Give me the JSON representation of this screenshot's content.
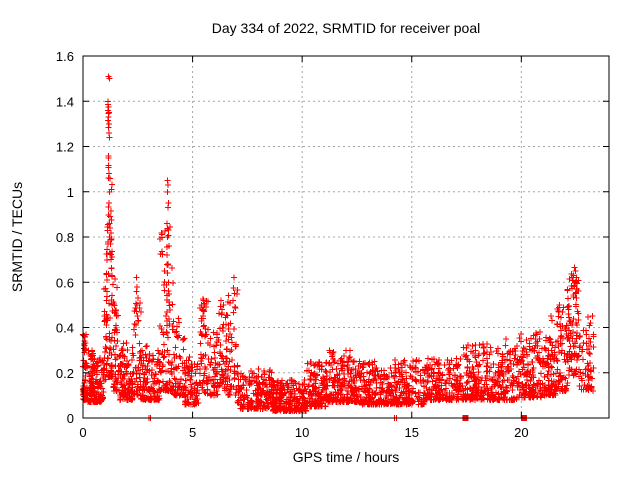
{
  "title": "Day 334 of 2022, SRMTID for receiver poal",
  "colors": {
    "marker": "#ff0000",
    "grid": "#a6a6a6",
    "axis": "#000000",
    "background": "#ffffff",
    "text": "#000000"
  },
  "chart_data": {
    "type": "scatter",
    "title": "Day 334 of 2022, SRMTID for receiver poal",
    "xlabel": "GPS time / hours",
    "ylabel": "SRMTID / TECUs",
    "xlim": [
      0,
      24
    ],
    "ylim": [
      0,
      1.6
    ],
    "xticks": [
      0,
      5,
      10,
      15,
      20
    ],
    "xtick_labels": [
      "0",
      "5",
      "10",
      "15",
      "20"
    ],
    "yticks": [
      0,
      0.2,
      0.4,
      0.6,
      0.8,
      1.0,
      1.2,
      1.4,
      1.6
    ],
    "ytick_labels": [
      "0",
      "0.2",
      "0.4",
      "0.6",
      "0.8",
      "1",
      "1.2",
      "1.4",
      "1.6"
    ],
    "grid": true,
    "legend": "none",
    "marker": "plus",
    "marker_color": "#ff0000",
    "seed": 334,
    "series_description": "Dense noisy SRMTID scatter over 24 h: background band 0.05-0.3 TECU with spikes near 1.2 h (to 1.51), 3.9 h (to 1.05), 2.45 h (0.62), 5.5/6.4/6.9 h (0.5-0.62) and end-of-day rise at 22.4 h (to 0.66); quietest 7-10 h (0.03-0.2).",
    "envelope_segments": [
      {
        "x0": 0.0,
        "x1": 0.15,
        "n": 55,
        "ymin": 0.08,
        "ymax": 0.37,
        "skew": 1.6
      },
      {
        "x0": 0.15,
        "x1": 0.55,
        "n": 90,
        "ymin": 0.07,
        "ymax": 0.3,
        "skew": 2.0
      },
      {
        "x0": 0.55,
        "x1": 0.95,
        "n": 70,
        "ymin": 0.07,
        "ymax": 0.28,
        "skew": 2.0
      },
      {
        "x0": 0.95,
        "x1": 1.1,
        "n": 22,
        "ymin": 0.15,
        "ymax": 0.66,
        "skew": 1.2
      },
      {
        "x0": 1.05,
        "x1": 1.35,
        "n": 80,
        "ymin": 0.18,
        "ymax": 1.2,
        "skew": 2.6
      },
      {
        "x0": 1.35,
        "x1": 1.6,
        "n": 45,
        "ymin": 0.12,
        "ymax": 0.62,
        "skew": 1.8
      },
      {
        "x0": 1.6,
        "x1": 2.3,
        "n": 120,
        "ymin": 0.08,
        "ymax": 0.34,
        "skew": 2.0
      },
      {
        "x0": 2.3,
        "x1": 2.65,
        "n": 45,
        "ymin": 0.1,
        "ymax": 0.55,
        "skew": 1.6
      },
      {
        "x0": 2.65,
        "x1": 3.5,
        "n": 120,
        "ymin": 0.08,
        "ymax": 0.32,
        "skew": 2.0
      },
      {
        "x0": 3.5,
        "x1": 4.1,
        "n": 100,
        "ymin": 0.12,
        "ymax": 0.85,
        "skew": 2.4
      },
      {
        "x0": 4.1,
        "x1": 4.65,
        "n": 65,
        "ymin": 0.1,
        "ymax": 0.44,
        "skew": 1.8
      },
      {
        "x0": 4.65,
        "x1": 5.3,
        "n": 85,
        "ymin": 0.06,
        "ymax": 0.28,
        "skew": 1.9
      },
      {
        "x0": 5.3,
        "x1": 5.75,
        "n": 55,
        "ymin": 0.1,
        "ymax": 0.53,
        "skew": 1.3
      },
      {
        "x0": 5.75,
        "x1": 6.15,
        "n": 45,
        "ymin": 0.1,
        "ymax": 0.38,
        "skew": 1.8
      },
      {
        "x0": 6.15,
        "x1": 6.6,
        "n": 55,
        "ymin": 0.12,
        "ymax": 0.52,
        "skew": 1.4
      },
      {
        "x0": 6.6,
        "x1": 7.05,
        "n": 50,
        "ymin": 0.1,
        "ymax": 0.58,
        "skew": 1.8
      },
      {
        "x0": 7.05,
        "x1": 8.6,
        "n": 200,
        "ymin": 0.04,
        "ymax": 0.22,
        "skew": 1.9
      },
      {
        "x0": 8.6,
        "x1": 10.2,
        "n": 230,
        "ymin": 0.03,
        "ymax": 0.17,
        "skew": 1.8
      },
      {
        "x0": 10.2,
        "x1": 11.1,
        "n": 140,
        "ymin": 0.05,
        "ymax": 0.25,
        "skew": 2.0
      },
      {
        "x0": 11.1,
        "x1": 12.6,
        "n": 210,
        "ymin": 0.07,
        "ymax": 0.3,
        "skew": 2.2
      },
      {
        "x0": 12.6,
        "x1": 14.1,
        "n": 190,
        "ymin": 0.06,
        "ymax": 0.25,
        "skew": 2.0
      },
      {
        "x0": 14.1,
        "x1": 15.6,
        "n": 180,
        "ymin": 0.06,
        "ymax": 0.26,
        "skew": 2.0
      },
      {
        "x0": 15.6,
        "x1": 17.3,
        "n": 200,
        "ymin": 0.08,
        "ymax": 0.27,
        "skew": 2.0
      },
      {
        "x0": 17.3,
        "x1": 18.7,
        "n": 180,
        "ymin": 0.08,
        "ymax": 0.33,
        "skew": 2.0
      },
      {
        "x0": 18.7,
        "x1": 19.8,
        "n": 130,
        "ymin": 0.08,
        "ymax": 0.31,
        "skew": 2.0
      },
      {
        "x0": 19.8,
        "x1": 20.9,
        "n": 150,
        "ymin": 0.09,
        "ymax": 0.38,
        "skew": 2.2
      },
      {
        "x0": 20.9,
        "x1": 21.6,
        "n": 90,
        "ymin": 0.1,
        "ymax": 0.4,
        "skew": 2.0
      },
      {
        "x0": 21.6,
        "x1": 22.1,
        "n": 70,
        "ymin": 0.12,
        "ymax": 0.5,
        "skew": 1.7
      },
      {
        "x0": 22.1,
        "x1": 22.65,
        "n": 90,
        "ymin": 0.18,
        "ymax": 0.64,
        "skew": 1.1
      },
      {
        "x0": 22.65,
        "x1": 23.3,
        "n": 60,
        "ymin": 0.12,
        "ymax": 0.46,
        "skew": 1.6
      }
    ],
    "explicit_points": [
      [
        1.17,
        1.51
      ],
      [
        1.2,
        1.5
      ],
      [
        1.13,
        1.4
      ],
      [
        1.15,
        1.385
      ],
      [
        1.16,
        1.375
      ],
      [
        1.14,
        1.36
      ],
      [
        1.18,
        1.35
      ],
      [
        1.16,
        1.345
      ],
      [
        1.17,
        1.33
      ],
      [
        1.15,
        1.315
      ],
      [
        1.19,
        1.3
      ],
      [
        1.16,
        1.285
      ],
      [
        1.18,
        1.26
      ],
      [
        1.2,
        1.24
      ],
      [
        1.17,
        1.15
      ],
      [
        1.19,
        1.08
      ],
      [
        1.16,
        1.06
      ],
      [
        1.21,
        1.0
      ],
      [
        1.18,
        0.95
      ],
      [
        1.23,
        0.89
      ],
      [
        1.21,
        0.86
      ],
      [
        1.24,
        0.84
      ],
      [
        1.22,
        0.8
      ],
      [
        1.25,
        0.77
      ],
      [
        1.23,
        0.73
      ],
      [
        1.27,
        0.7
      ],
      [
        1.3,
        0.66
      ],
      [
        1.33,
        0.63
      ],
      [
        3.85,
        1.05
      ],
      [
        3.88,
        1.03
      ],
      [
        3.86,
        1.0
      ],
      [
        3.9,
        0.95
      ],
      [
        3.87,
        0.93
      ],
      [
        3.84,
        0.86
      ],
      [
        3.89,
        0.83
      ],
      [
        3.86,
        0.8
      ],
      [
        3.92,
        0.76
      ],
      [
        3.83,
        0.72
      ],
      [
        3.88,
        0.68
      ],
      [
        3.85,
        0.64
      ],
      [
        3.91,
        0.6
      ],
      [
        2.45,
        0.62
      ],
      [
        2.47,
        0.58
      ],
      [
        2.43,
        0.56
      ],
      [
        2.5,
        0.53
      ],
      [
        2.46,
        0.5
      ],
      [
        2.44,
        0.47
      ],
      [
        2.49,
        0.45
      ],
      [
        6.9,
        0.62
      ],
      [
        6.87,
        0.575
      ],
      [
        6.92,
        0.55
      ],
      [
        6.85,
        0.52
      ],
      [
        6.94,
        0.49
      ],
      [
        5.5,
        0.52
      ],
      [
        5.55,
        0.5
      ],
      [
        5.45,
        0.48
      ],
      [
        5.52,
        0.47
      ],
      [
        5.48,
        0.45
      ],
      [
        6.3,
        0.52
      ],
      [
        6.4,
        0.5
      ],
      [
        6.35,
        0.48
      ],
      [
        19.3,
        0.35
      ],
      [
        19.28,
        0.32
      ],
      [
        21.35,
        0.45
      ],
      [
        21.4,
        0.43
      ],
      [
        21.75,
        0.5
      ],
      [
        21.7,
        0.47
      ],
      [
        22.42,
        0.665
      ],
      [
        22.47,
        0.65
      ],
      [
        22.38,
        0.63
      ],
      [
        22.52,
        0.62
      ],
      [
        22.45,
        0.6
      ],
      [
        22.4,
        0.585
      ],
      [
        22.55,
        0.57
      ],
      [
        22.5,
        0.555
      ]
    ],
    "baseline_plus_markers": [
      3.02,
      3.09,
      14.22,
      14.31
    ],
    "baseline_square_markers": [
      17.45,
      20.12
    ]
  }
}
